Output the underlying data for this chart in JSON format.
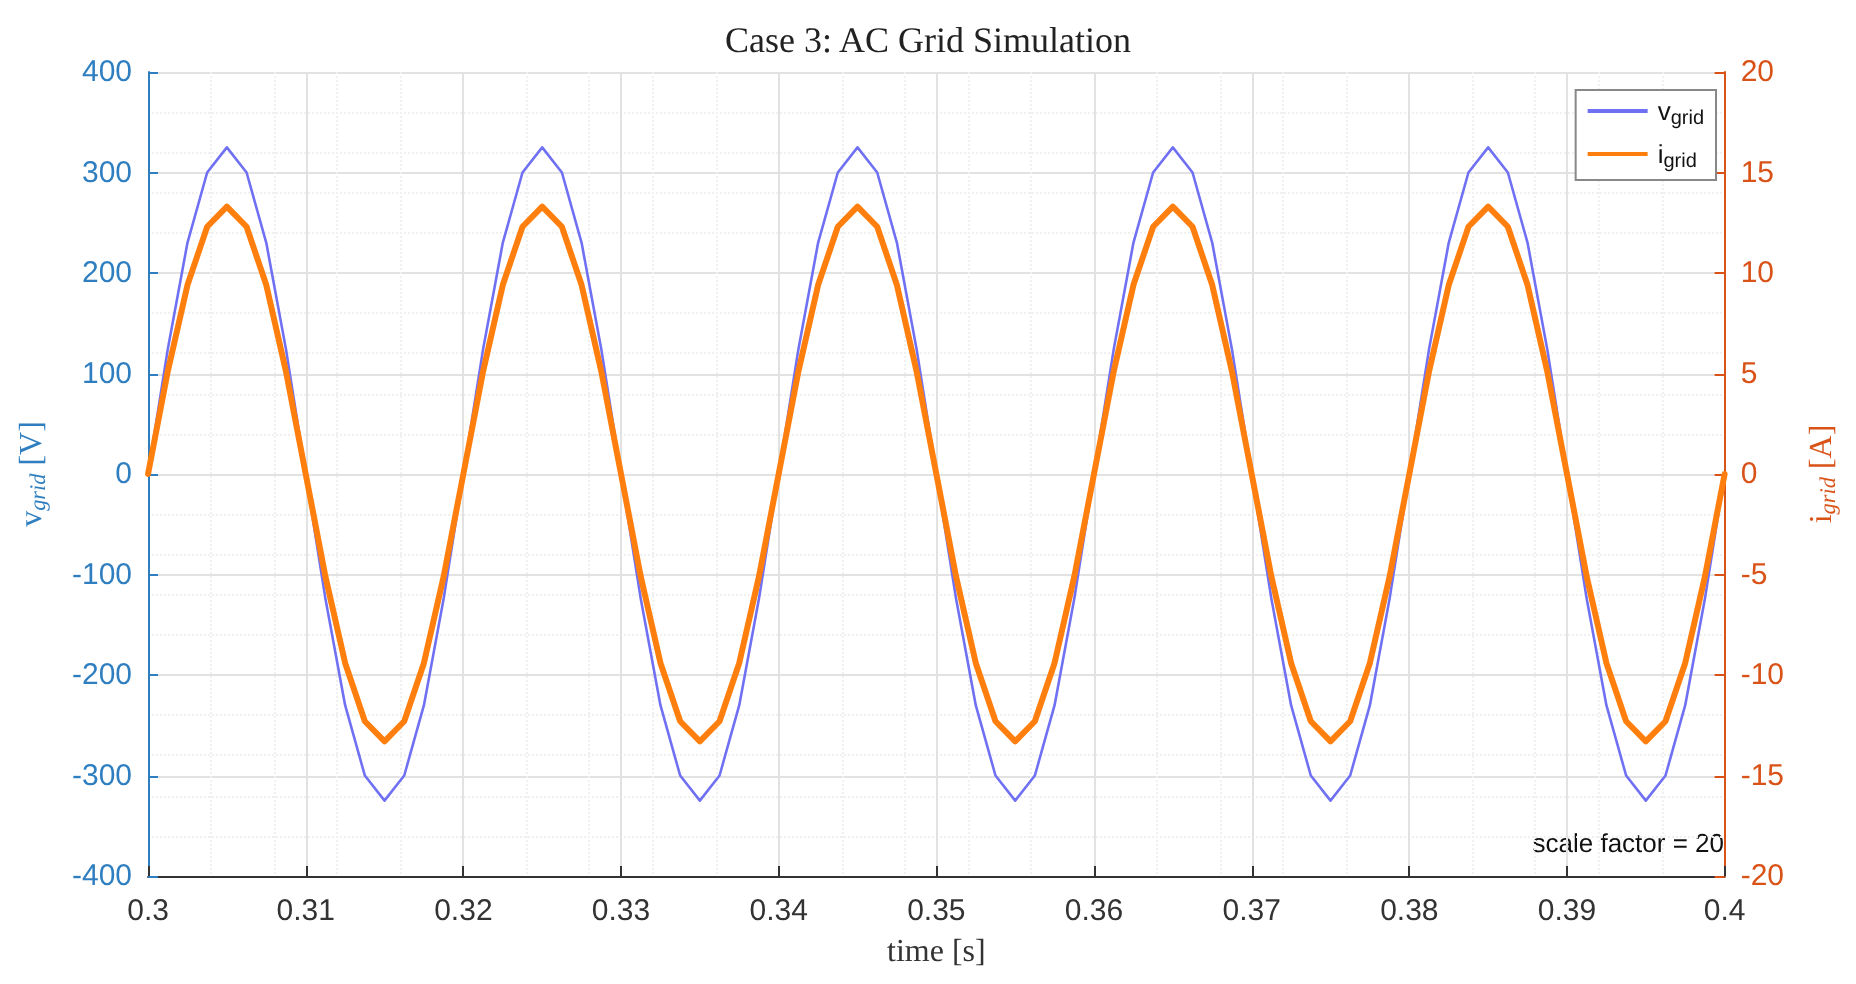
{
  "chart_data": {
    "type": "line",
    "title": "Case 3: AC Grid Simulation",
    "xlabel": "time [s]",
    "ylabel": "v$_{grid}$ [V]",
    "y2label": "i$_{grid}$ [A]",
    "annotations": [
      "scale factor = 20"
    ],
    "x": [
      0.3,
      0.30125,
      0.3025,
      0.30375,
      0.305,
      0.30625,
      0.3075,
      0.30875,
      0.31,
      0.31125,
      0.3125,
      0.31375,
      0.315,
      0.31625,
      0.3175,
      0.31875,
      0.32,
      0.32125,
      0.3225,
      0.32375,
      0.325,
      0.32625,
      0.3275,
      0.32875,
      0.33,
      0.33125,
      0.3325,
      0.33375,
      0.335,
      0.33625,
      0.3375,
      0.33875,
      0.34,
      0.34125,
      0.3425,
      0.34375,
      0.345,
      0.34625,
      0.3475,
      0.34875,
      0.35,
      0.35125,
      0.3525,
      0.35375,
      0.355,
      0.35625,
      0.3575,
      0.35875,
      0.36,
      0.36125,
      0.3625,
      0.36375,
      0.365,
      0.36625,
      0.3675,
      0.36875,
      0.37,
      0.37125,
      0.3725,
      0.37375,
      0.375,
      0.37625,
      0.3775,
      0.37875,
      0.38,
      0.38125,
      0.3825,
      0.38375,
      0.385,
      0.38625,
      0.3875,
      0.38875,
      0.39,
      0.39125,
      0.3925,
      0.39375,
      0.395,
      0.39625,
      0.3975,
      0.39875,
      0.4
    ],
    "series": [
      {
        "name": "v$_{grid}$",
        "color": "#7070f2",
        "values": [
          0,
          124,
          230,
          300,
          325,
          300,
          230,
          124,
          0,
          -124,
          -230,
          -300,
          -325,
          -300,
          -230,
          -124,
          0,
          124,
          230,
          300,
          325,
          300,
          230,
          124,
          0,
          -124,
          -230,
          -300,
          -325,
          -300,
          -230,
          -124,
          0,
          124,
          230,
          300,
          325,
          300,
          230,
          124,
          0,
          -124,
          -230,
          -300,
          -325,
          -300,
          -230,
          -124,
          0,
          124,
          230,
          300,
          325,
          300,
          230,
          124,
          0,
          -124,
          -230,
          -300,
          -325,
          -300,
          -230,
          -124,
          0,
          124,
          230,
          300,
          325,
          300,
          230,
          124,
          0,
          -124,
          -230,
          -300,
          -325,
          -300,
          -230,
          -124,
          0
        ]
      },
      {
        "name": "i$_{grid}$",
        "color": "#ff7f0e",
        "axis": "y2",
        "values": [
          0,
          5.1,
          9.4,
          12.3,
          13.3,
          12.3,
          9.4,
          5.1,
          0,
          -5.1,
          -9.4,
          -12.3,
          -13.3,
          -12.3,
          -9.4,
          -5.1,
          0,
          5.1,
          9.4,
          12.3,
          13.3,
          12.3,
          9.4,
          5.1,
          0,
          -5.1,
          -9.4,
          -12.3,
          -13.3,
          -12.3,
          -9.4,
          -5.1,
          0,
          5.1,
          9.4,
          12.3,
          13.3,
          12.3,
          9.4,
          5.1,
          0,
          -5.1,
          -9.4,
          -12.3,
          -13.3,
          -12.3,
          -9.4,
          -5.1,
          0,
          5.1,
          9.4,
          12.3,
          13.3,
          12.3,
          9.4,
          5.1,
          0,
          -5.1,
          -9.4,
          -12.3,
          -13.3,
          -12.3,
          -9.4,
          -5.1,
          0,
          5.1,
          9.4,
          12.3,
          13.3,
          12.3,
          9.4,
          5.1,
          0,
          -5.1,
          -9.4,
          -12.3,
          -13.3,
          -12.3,
          -9.4,
          -5.1,
          0
        ]
      }
    ],
    "xlim": [
      0.3,
      0.4
    ],
    "xticks": [
      0.3,
      0.31,
      0.32,
      0.33,
      0.34,
      0.35,
      0.36,
      0.37,
      0.38,
      0.39,
      0.4
    ],
    "ylim": [
      -400,
      400
    ],
    "yticks": [
      -400,
      -300,
      -200,
      -100,
      0,
      100,
      200,
      300,
      400
    ],
    "y2lim": [
      -20,
      20
    ],
    "y2ticks": [
      -20,
      -15,
      -10,
      -5,
      0,
      5,
      10,
      15,
      20
    ],
    "grid": true,
    "legend": "top right",
    "marker": "none",
    "line_style": "solid"
  }
}
